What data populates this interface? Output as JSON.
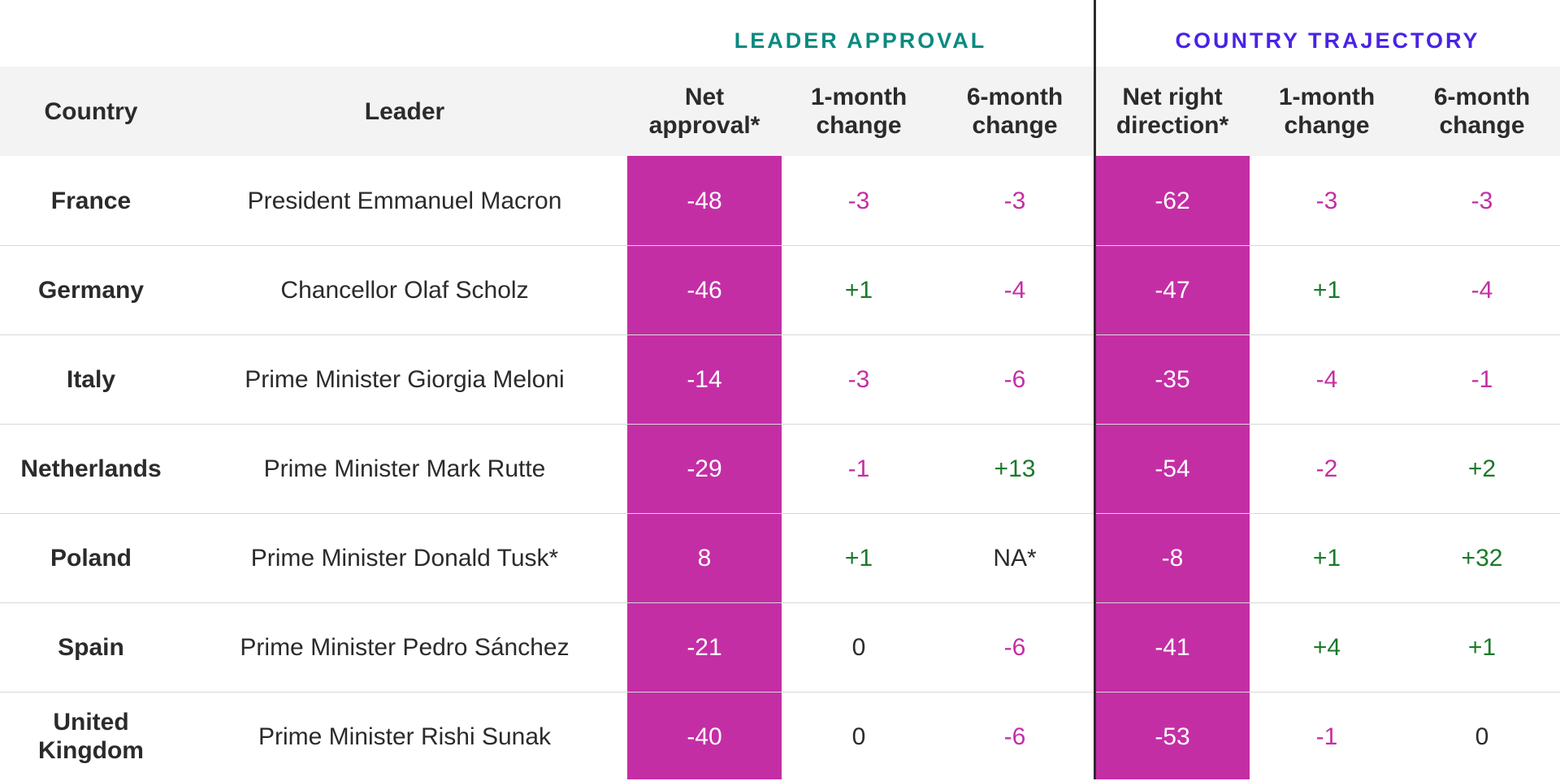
{
  "chart_data": {
    "type": "table",
    "groups": [
      {
        "label": "LEADER APPROVAL",
        "color": "#0a8a80"
      },
      {
        "label": "COUNTRY TRAJECTORY",
        "color": "#4a22e6"
      }
    ],
    "columns": [
      {
        "key": "country",
        "label": "Country"
      },
      {
        "key": "leader",
        "label": "Leader"
      },
      {
        "key": "net_approval",
        "label": "Net approval*"
      },
      {
        "key": "approval_1m",
        "label": "1-month change"
      },
      {
        "key": "approval_6m",
        "label": "6-month change"
      },
      {
        "key": "net_right_direction",
        "label": "Net right direction*"
      },
      {
        "key": "trajectory_1m",
        "label": "1-month change"
      },
      {
        "key": "trajectory_6m",
        "label": "6-month change"
      }
    ],
    "rows": [
      {
        "country": "France",
        "leader": "President Emmanuel Macron",
        "net_approval": "-48",
        "approval_1m": "-3",
        "approval_6m": "-3",
        "net_right_direction": "-62",
        "trajectory_1m": "-3",
        "trajectory_6m": "-3"
      },
      {
        "country": "Germany",
        "leader": "Chancellor Olaf Scholz",
        "net_approval": "-46",
        "approval_1m": "+1",
        "approval_6m": "-4",
        "net_right_direction": "-47",
        "trajectory_1m": "+1",
        "trajectory_6m": "-4"
      },
      {
        "country": "Italy",
        "leader": "Prime Minister Giorgia Meloni",
        "net_approval": "-14",
        "approval_1m": "-3",
        "approval_6m": "-6",
        "net_right_direction": "-35",
        "trajectory_1m": "-4",
        "trajectory_6m": "-1"
      },
      {
        "country": "Netherlands",
        "leader": "Prime Minister Mark Rutte",
        "net_approval": "-29",
        "approval_1m": "-1",
        "approval_6m": "+13",
        "net_right_direction": "-54",
        "trajectory_1m": "-2",
        "trajectory_6m": "+2"
      },
      {
        "country": "Poland",
        "leader": "Prime Minister Donald Tusk*",
        "net_approval": "8",
        "approval_1m": "+1",
        "approval_6m": "NA*",
        "net_right_direction": "-8",
        "trajectory_1m": "+1",
        "trajectory_6m": "+32"
      },
      {
        "country": "Spain",
        "leader": "Prime Minister Pedro Sánchez",
        "net_approval": "-21",
        "approval_1m": "0",
        "approval_6m": "-6",
        "net_right_direction": "-41",
        "trajectory_1m": "+4",
        "trajectory_6m": "+1"
      },
      {
        "country": "United Kingdom",
        "leader": "Prime Minister Rishi Sunak",
        "net_approval": "-40",
        "approval_1m": "0",
        "approval_6m": "-6",
        "net_right_direction": "-53",
        "trajectory_1m": "-1",
        "trajectory_6m": "0"
      }
    ],
    "colors": {
      "highlight_fill": "#c42ea5",
      "negative": "#c42ea5",
      "positive": "#1a7a2a",
      "neutral": "#2b2b2b",
      "header_band": "#f2f3f2"
    }
  }
}
